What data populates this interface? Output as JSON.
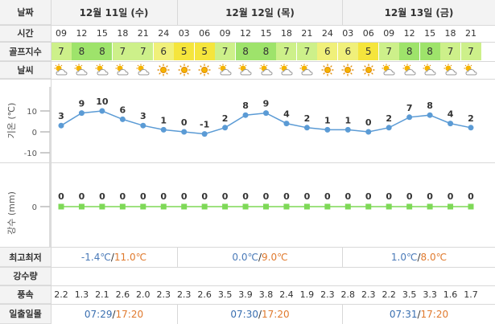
{
  "labels": {
    "date": "날짜",
    "time": "시간",
    "golf_index": "골프지수",
    "weather": "날씨",
    "temp_axis": "기온 (℃)",
    "rain_axis": "강수 (mm)",
    "minmax": "최고최저",
    "rainfall": "강수량",
    "wind": "풍속",
    "sunrise_sunset": "일출일몰"
  },
  "dates": [
    "12월 11일 (수)",
    "12월 12일 (목)",
    "12월 13일 (금)"
  ],
  "hours": [
    "09",
    "12",
    "15",
    "18",
    "21",
    "24",
    "03",
    "06",
    "09",
    "12",
    "15",
    "18",
    "21",
    "24",
    "03",
    "06",
    "09",
    "12",
    "15",
    "18",
    "21"
  ],
  "golf_index": [
    7,
    8,
    8,
    7,
    7,
    6,
    5,
    5,
    7,
    8,
    8,
    7,
    7,
    6,
    6,
    5,
    7,
    8,
    8,
    7,
    7
  ],
  "weather_icons": [
    "partly-cloudy",
    "partly-cloudy",
    "partly-cloudy",
    "partly-cloudy",
    "partly-cloudy",
    "clear-night",
    "clear-night",
    "clear-night",
    "partly-cloudy",
    "partly-cloudy",
    "partly-cloudy",
    "partly-cloudy",
    "partly-cloudy",
    "clear-night",
    "clear-night",
    "clear-night",
    "partly-cloudy",
    "partly-cloudy",
    "partly-cloudy",
    "partly-cloudy",
    "partly-cloudy"
  ],
  "golf_colors": {
    "8": "#9ee36b",
    "7": "#cdf08a",
    "6": "#f0f07a",
    "5": "#f5e53c"
  },
  "chart_data": [
    {
      "type": "line",
      "x": [
        "09",
        "12",
        "15",
        "18",
        "21",
        "24",
        "03",
        "06",
        "09",
        "12",
        "15",
        "18",
        "21",
        "24",
        "03",
        "06",
        "09",
        "12",
        "15",
        "18",
        "21"
      ],
      "values": [
        3,
        9,
        10,
        6,
        3,
        1,
        0,
        -1,
        2,
        8,
        9,
        4,
        2,
        1,
        1,
        0,
        2,
        7,
        8,
        4,
        2
      ],
      "ylabel": "기온 (℃)",
      "yticks": [
        10,
        0,
        -10
      ],
      "ylim": [
        -10,
        10
      ],
      "color": "#5b9bd5"
    },
    {
      "type": "line",
      "x": [
        "09",
        "12",
        "15",
        "18",
        "21",
        "24",
        "03",
        "06",
        "09",
        "12",
        "15",
        "18",
        "21",
        "24",
        "03",
        "06",
        "09",
        "12",
        "15",
        "18",
        "21"
      ],
      "values": [
        0,
        0,
        0,
        0,
        0,
        0,
        0,
        0,
        0,
        0,
        0,
        0,
        0,
        0,
        0,
        0,
        0,
        0,
        0,
        0,
        0
      ],
      "ylabel": "강수 (mm)",
      "yticks": [
        0
      ],
      "color": "#7ed957"
    }
  ],
  "minmax": [
    {
      "low": "-1.4℃",
      "high": "11.0℃"
    },
    {
      "low": "0.0℃",
      "high": "9.0℃"
    },
    {
      "low": "1.0℃",
      "high": "8.0℃"
    }
  ],
  "wind": [
    "2.2",
    "1.3",
    "2.1",
    "2.6",
    "2.0",
    "2.3",
    "2.3",
    "2.6",
    "3.5",
    "3.9",
    "3.8",
    "2.4",
    "1.9",
    "2.3",
    "2.8",
    "2.3",
    "2.2",
    "3.5",
    "3.3",
    "1.6",
    "1.7"
  ],
  "sun": [
    {
      "rise": "07:29",
      "set": "17:20"
    },
    {
      "rise": "07:30",
      "set": "17:20"
    },
    {
      "rise": "07:31",
      "set": "17:20"
    }
  ]
}
